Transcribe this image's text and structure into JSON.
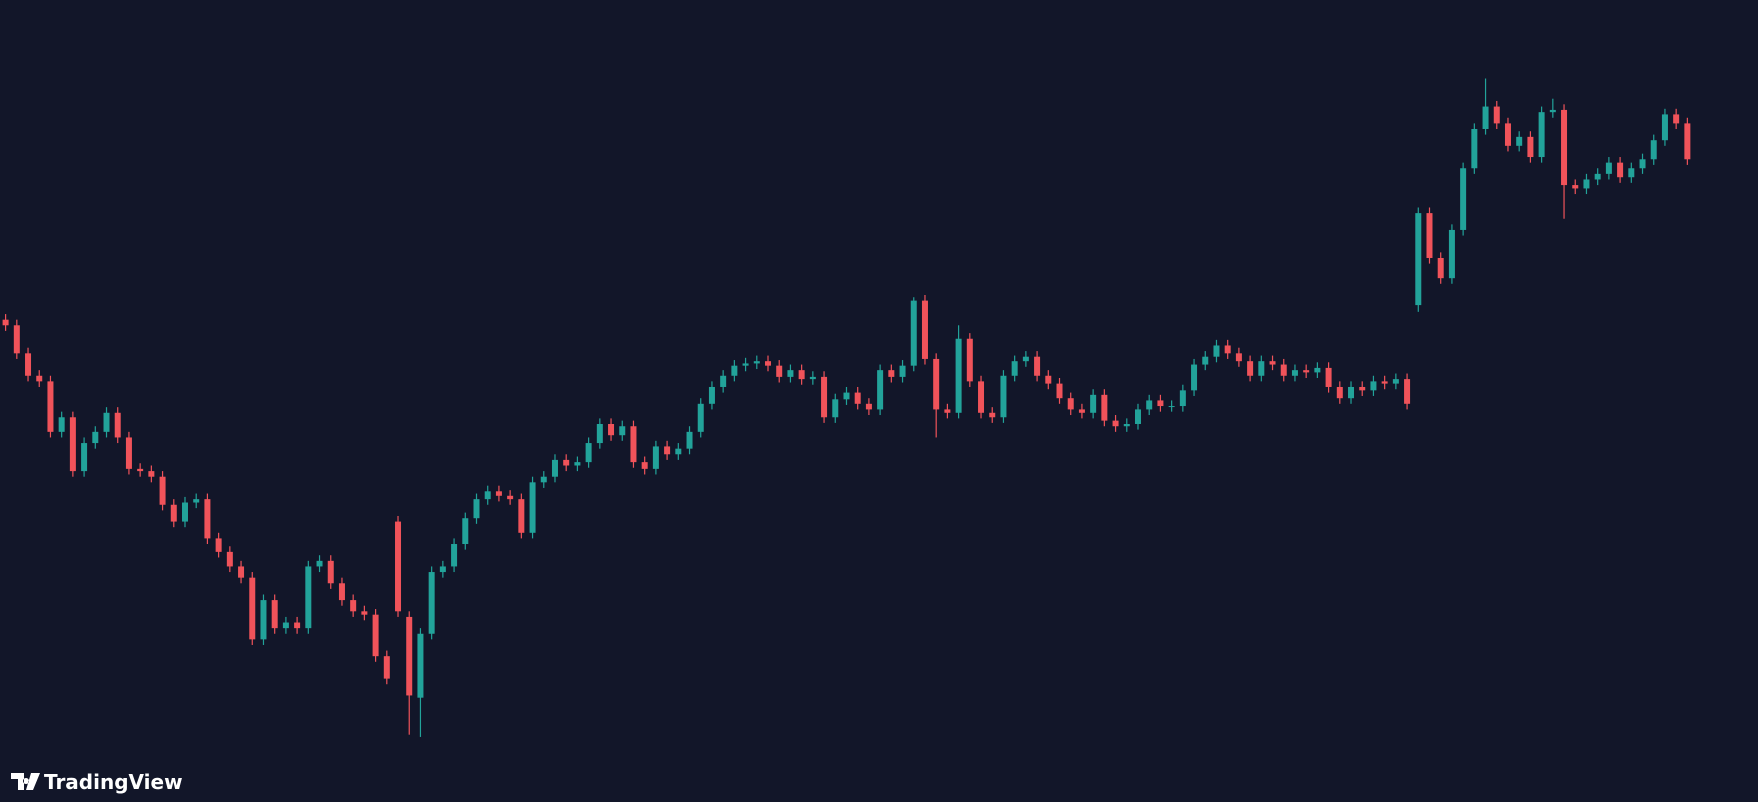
{
  "chart_data": {
    "type": "candlestick",
    "watermark": "TradingView",
    "up_color": "#22a39a",
    "down_color": "#f0535a",
    "ylim": [
      0,
      715
    ],
    "open": [
      430,
      425,
      400,
      380,
      375,
      330,
      343,
      295,
      320,
      330,
      347,
      325,
      297,
      295,
      290,
      265,
      250,
      267,
      270,
      235,
      223,
      210,
      200,
      145,
      180,
      155,
      160,
      155,
      210,
      215,
      195,
      180,
      170,
      167,
      130,
      250,
      165,
      93,
      150,
      205,
      210,
      230,
      253,
      270,
      277,
      273,
      270,
      240,
      285,
      290,
      305,
      300,
      303,
      320,
      337,
      327,
      335,
      303,
      297,
      317,
      310,
      315,
      330,
      355,
      370,
      380,
      389,
      391,
      393,
      389,
      379,
      385,
      377,
      379,
      343,
      359,
      365,
      355,
      350,
      385,
      379,
      389,
      447,
      395,
      350,
      347,
      413,
      375,
      347,
      343,
      380,
      393,
      397,
      380,
      373,
      360,
      350,
      347,
      363,
      340,
      335,
      337,
      350,
      358,
      353,
      353,
      367,
      390,
      397,
      407,
      400,
      393,
      380,
      393,
      390,
      380,
      385,
      383,
      387,
      370,
      360,
      370,
      367,
      375,
      373,
      377,
      443,
      525,
      485,
      467,
      510,
      565,
      600,
      620,
      605,
      585,
      593,
      575,
      615,
      617,
      550,
      547,
      555,
      560,
      570,
      557,
      565,
      573,
      590,
      613,
      605
    ],
    "high": [
      435,
      430,
      405,
      385,
      380,
      348,
      348,
      325,
      335,
      352,
      352,
      330,
      302,
      300,
      295,
      270,
      272,
      275,
      275,
      240,
      228,
      215,
      205,
      185,
      185,
      165,
      165,
      215,
      220,
      220,
      200,
      185,
      175,
      172,
      135,
      255,
      170,
      155,
      210,
      215,
      235,
      258,
      275,
      282,
      282,
      278,
      275,
      290,
      295,
      310,
      310,
      308,
      325,
      342,
      342,
      340,
      340,
      308,
      322,
      322,
      320,
      335,
      360,
      375,
      385,
      394,
      396,
      398,
      398,
      394,
      390,
      390,
      384,
      384,
      364,
      370,
      370,
      360,
      390,
      390,
      394,
      450,
      452,
      400,
      355,
      425,
      418,
      380,
      352,
      385,
      398,
      402,
      402,
      385,
      378,
      365,
      355,
      368,
      368,
      345,
      342,
      355,
      363,
      363,
      358,
      372,
      395,
      402,
      412,
      412,
      405,
      398,
      398,
      398,
      395,
      390,
      390,
      392,
      392,
      375,
      375,
      375,
      380,
      380,
      382,
      382,
      530,
      530,
      490,
      515,
      570,
      605,
      645,
      625,
      610,
      598,
      598,
      620,
      627,
      622,
      555,
      560,
      565,
      575,
      575,
      570,
      578,
      595,
      618,
      618,
      610
    ],
    "low": [
      420,
      395,
      375,
      370,
      325,
      325,
      290,
      290,
      315,
      325,
      320,
      292,
      290,
      285,
      260,
      245,
      245,
      262,
      230,
      218,
      205,
      195,
      140,
      140,
      150,
      150,
      150,
      150,
      205,
      190,
      175,
      165,
      162,
      125,
      105,
      165,
      60,
      58,
      145,
      200,
      205,
      225,
      248,
      265,
      268,
      265,
      235,
      235,
      280,
      285,
      295,
      295,
      298,
      315,
      322,
      322,
      298,
      292,
      292,
      305,
      305,
      310,
      325,
      350,
      365,
      375,
      384,
      386,
      384,
      374,
      374,
      372,
      372,
      338,
      338,
      354,
      350,
      345,
      345,
      374,
      374,
      384,
      390,
      325,
      342,
      342,
      370,
      342,
      338,
      338,
      375,
      388,
      375,
      368,
      355,
      345,
      342,
      342,
      335,
      330,
      330,
      332,
      345,
      348,
      348,
      348,
      362,
      385,
      392,
      395,
      388,
      375,
      375,
      385,
      375,
      375,
      378,
      378,
      365,
      355,
      355,
      362,
      362,
      368,
      368,
      350,
      437,
      480,
      462,
      462,
      505,
      560,
      595,
      600,
      580,
      580,
      570,
      570,
      610,
      520,
      542,
      542,
      550,
      555,
      552,
      552,
      560,
      568,
      585,
      600,
      568
    ],
    "close": [
      425,
      400,
      380,
      375,
      330,
      343,
      295,
      320,
      330,
      347,
      325,
      297,
      295,
      290,
      265,
      250,
      267,
      270,
      235,
      223,
      210,
      200,
      145,
      180,
      155,
      160,
      155,
      210,
      215,
      195,
      180,
      170,
      167,
      130,
      110,
      170,
      95,
      150,
      205,
      210,
      230,
      253,
      270,
      277,
      273,
      270,
      240,
      285,
      290,
      305,
      300,
      303,
      320,
      337,
      327,
      335,
      303,
      297,
      317,
      310,
      315,
      330,
      355,
      370,
      380,
      389,
      391,
      393,
      389,
      379,
      385,
      377,
      379,
      343,
      359,
      365,
      355,
      350,
      385,
      379,
      389,
      447,
      395,
      350,
      347,
      413,
      375,
      347,
      343,
      380,
      393,
      397,
      380,
      373,
      360,
      350,
      347,
      363,
      340,
      335,
      337,
      350,
      358,
      353,
      353,
      367,
      390,
      397,
      407,
      400,
      393,
      380,
      393,
      390,
      380,
      385,
      383,
      387,
      370,
      360,
      370,
      367,
      375,
      373,
      377,
      355,
      525,
      485,
      467,
      510,
      565,
      600,
      620,
      605,
      585,
      593,
      575,
      615,
      617,
      550,
      547,
      555,
      560,
      570,
      557,
      565,
      573,
      590,
      613,
      605,
      573
    ]
  }
}
